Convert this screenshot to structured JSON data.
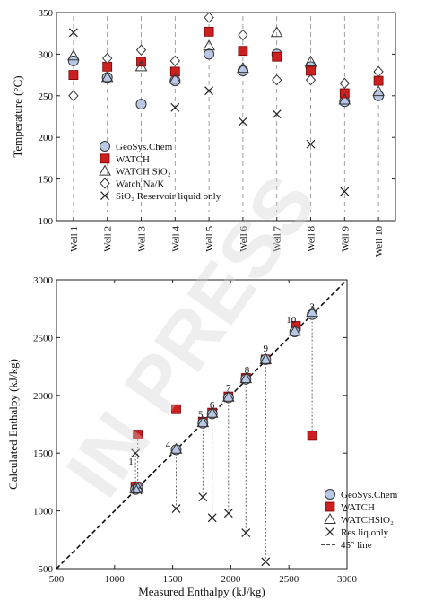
{
  "watermark": "IN PRESS",
  "chart_data": [
    {
      "type": "scatter",
      "xlabel": "",
      "ylabel": "Temperature (°C)",
      "categories": [
        "Well 1",
        "Well 2",
        "Well 3",
        "Well 4",
        "Well 5",
        "Well 6",
        "Well 7",
        "Well 8",
        "Well 9",
        "Well 10"
      ],
      "ylim": [
        100,
        350
      ],
      "yticks": [
        100,
        150,
        200,
        250,
        300,
        350
      ],
      "legend_position": "lower-left",
      "series": [
        {
          "name": "GeoSys.Chem",
          "marker": "circle",
          "color": "#b8c8e6",
          "values": [
            292,
            272,
            240,
            268,
            300,
            280,
            300,
            285,
            243,
            250
          ]
        },
        {
          "name": "WATCH",
          "marker": "square",
          "color": "#cc1f1f",
          "values": [
            275,
            285,
            291,
            279,
            327,
            304,
            297,
            280,
            253,
            268
          ]
        },
        {
          "name": "WATCH SiO₂",
          "marker": "triangle",
          "color": "#ffffff",
          "values": [
            298,
            272,
            285,
            270,
            310,
            283,
            326,
            291,
            245,
            255
          ]
        },
        {
          "name": "Watch Na/K",
          "marker": "diamond",
          "color": "#ffffff",
          "values": [
            250,
            295,
            305,
            292,
            344,
            323,
            269,
            269,
            265,
            279
          ]
        },
        {
          "name": "SiO₂ Reservoir liquid only",
          "marker": "x",
          "color": "#111111",
          "values": [
            326,
            null,
            null,
            236,
            256,
            219,
            228,
            192,
            135,
            null
          ]
        }
      ]
    },
    {
      "type": "scatter",
      "xlabel": "Measured Enthalpy (kJ/kg)",
      "ylabel": "Calculated Enthalpy (kJ/kg)",
      "xlim": [
        500,
        3000
      ],
      "ylim": [
        500,
        3000
      ],
      "xticks": [
        500,
        1000,
        1500,
        2000,
        2500,
        3000
      ],
      "yticks": [
        500,
        1000,
        1500,
        2000,
        2500,
        3000
      ],
      "legend_position": "lower-right",
      "series": [
        {
          "name": "GeoSys.Chem",
          "marker": "circle",
          "color": "#b8c8e6",
          "points": [
            [
              1180,
              1185
            ],
            [
              1200,
              1200
            ],
            [
              2700,
              2700
            ],
            [
              1530,
              1530
            ],
            [
              1760,
              1760
            ],
            [
              1840,
              1840
            ],
            [
              1980,
              1980
            ],
            [
              2130,
              2140
            ],
            [
              2300,
              2310
            ],
            [
              2550,
              2550
            ]
          ]
        },
        {
          "name": "WATCH",
          "marker": "square",
          "color": "#cc1f1f",
          "points": [
            [
              1180,
              1210
            ],
            [
              1200,
              1660
            ],
            [
              2700,
              1650
            ],
            [
              1530,
              1880
            ],
            [
              1760,
              1770
            ],
            [
              1840,
              1850
            ],
            [
              1980,
              1990
            ],
            [
              2130,
              2150
            ],
            [
              2300,
              2310
            ],
            [
              2560,
              2600
            ]
          ]
        },
        {
          "name": "WATCHSiO₂",
          "marker": "triangle",
          "color": "#ffffff",
          "points": [
            [
              1180,
              1190
            ],
            [
              1200,
              1195
            ],
            [
              2700,
              2720
            ],
            [
              1530,
              1535
            ],
            [
              1760,
              1765
            ],
            [
              1840,
              1845
            ],
            [
              1980,
              1985
            ],
            [
              2130,
              2145
            ],
            [
              2300,
              2310
            ],
            [
              2550,
              2555
            ]
          ]
        },
        {
          "name": "Res.liq.only",
          "marker": "x",
          "color": "#111111",
          "points": [
            [
              1180,
              1500
            ],
            [
              1200,
              1180
            ],
            [
              1530,
              1020
            ],
            [
              1760,
              1120
            ],
            [
              1840,
              940
            ],
            [
              1980,
              980
            ],
            [
              2130,
              810
            ],
            [
              2300,
              560
            ]
          ]
        },
        {
          "name": "45° line",
          "marker": "dashed-line",
          "color": "#111111",
          "points": [
            [
              500,
              500
            ],
            [
              3000,
              3000
            ]
          ]
        }
      ],
      "annotations": [
        {
          "text": "1",
          "x": 1140,
          "y": 1430
        },
        {
          "text": "2",
          "x": 1225,
          "y": 1225
        },
        {
          "text": "3",
          "x": 2700,
          "y": 2770
        },
        {
          "text": "4",
          "x": 1460,
          "y": 1580
        },
        {
          "text": "5",
          "x": 1740,
          "y": 1840
        },
        {
          "text": "6",
          "x": 1840,
          "y": 1920
        },
        {
          "text": "7",
          "x": 1980,
          "y": 2070
        },
        {
          "text": "8",
          "x": 2140,
          "y": 2225
        },
        {
          "text": "9",
          "x": 2300,
          "y": 2410
        },
        {
          "text": "10",
          "x": 2520,
          "y": 2660
        }
      ],
      "drop_lines": [
        {
          "x": 1180,
          "y1": 1185,
          "y2": 1500
        },
        {
          "x": 1200,
          "y1": 1200,
          "y2": 1660
        },
        {
          "x": 2700,
          "y1": 2700,
          "y2": 1650
        },
        {
          "x": 1530,
          "y1": 1530,
          "y2": 1020
        },
        {
          "x": 1760,
          "y1": 1760,
          "y2": 1120
        },
        {
          "x": 1840,
          "y1": 1840,
          "y2": 940
        },
        {
          "x": 1980,
          "y1": 1980,
          "y2": 980
        },
        {
          "x": 2130,
          "y1": 2140,
          "y2": 810
        },
        {
          "x": 2300,
          "y1": 2310,
          "y2": 560
        }
      ]
    }
  ]
}
